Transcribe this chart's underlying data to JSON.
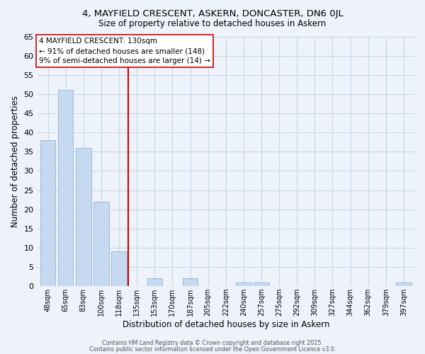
{
  "title": "4, MAYFIELD CRESCENT, ASKERN, DONCASTER, DN6 0JL",
  "subtitle": "Size of property relative to detached houses in Askern",
  "xlabel": "Distribution of detached houses by size in Askern",
  "ylabel": "Number of detached properties",
  "bar_labels": [
    "48sqm",
    "65sqm",
    "83sqm",
    "100sqm",
    "118sqm",
    "135sqm",
    "153sqm",
    "170sqm",
    "187sqm",
    "205sqm",
    "222sqm",
    "240sqm",
    "257sqm",
    "275sqm",
    "292sqm",
    "309sqm",
    "327sqm",
    "344sqm",
    "362sqm",
    "379sqm",
    "397sqm"
  ],
  "bar_values": [
    38,
    51,
    36,
    22,
    9,
    0,
    2,
    0,
    2,
    0,
    0,
    1,
    1,
    0,
    0,
    0,
    0,
    0,
    0,
    0,
    1
  ],
  "bar_color": "#c5d9f1",
  "bar_edge_color": "#a0b8d8",
  "vline_color": "#cc0000",
  "vline_pos": 4.5,
  "ylim": [
    0,
    65
  ],
  "yticks": [
    0,
    5,
    10,
    15,
    20,
    25,
    30,
    35,
    40,
    45,
    50,
    55,
    60,
    65
  ],
  "annotation_title": "4 MAYFIELD CRESCENT: 130sqm",
  "annotation_line1": "← 91% of detached houses are smaller (148)",
  "annotation_line2": "9% of semi-detached houses are larger (14) →",
  "annotation_box_color": "#ffffff",
  "annotation_box_edge": "#cc0000",
  "grid_color": "#c8d8e8",
  "bg_color": "#eef2fb",
  "footer1": "Contains HM Land Registry data © Crown copyright and database right 2025.",
  "footer2": "Contains public sector information licensed under the Open Government Licence v3.0."
}
